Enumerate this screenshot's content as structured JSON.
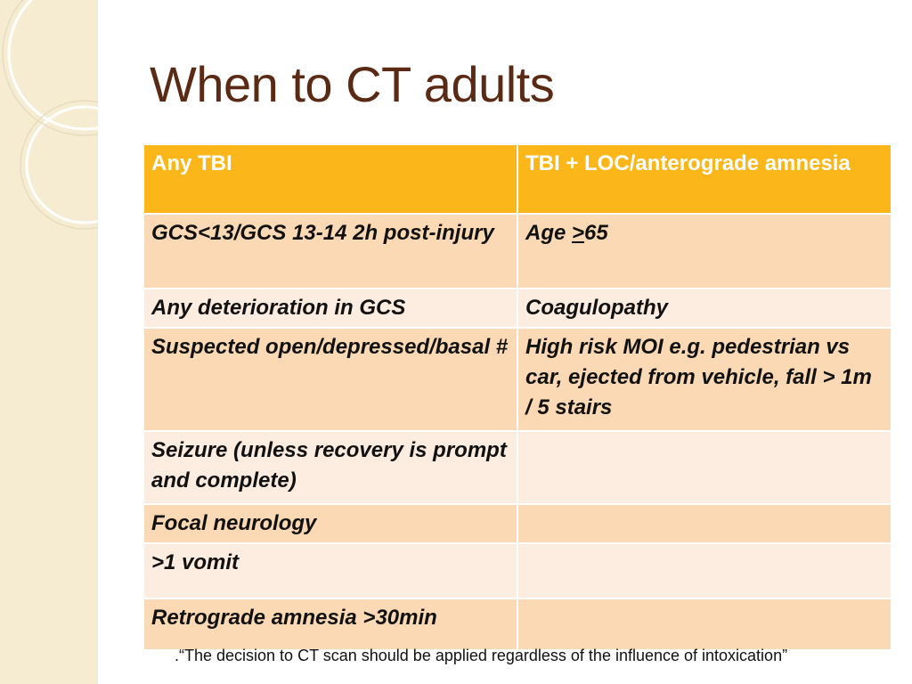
{
  "title": "When to CT adults",
  "headers": [
    "Any TBI",
    "TBI + LOC/anterograde amnesia"
  ],
  "rows": [
    {
      "left": "GCS<13/GCS 13-14 2h post-injury",
      "right_prefix": "Age ",
      "right_under": ">",
      "right_suffix": "65"
    },
    {
      "left": "Any deterioration in GCS",
      "right": "Coagulopathy"
    },
    {
      "left": "Suspected open/depressed/basal #",
      "right": "High risk MOI e.g. pedestrian vs car, ejected from vehicle, fall > 1m / 5 stairs"
    },
    {
      "left": "Seizure (unless recovery is prompt and complete)",
      "right": ""
    },
    {
      "left": "Focal neurology",
      "right": ""
    },
    {
      "left": ">1 vomit",
      "right": ""
    },
    {
      "left": "Retrograde amnesia >30min",
      "right": ""
    }
  ],
  "footnote": ".“The decision to CT scan should be applied regardless of the influence of intoxication”",
  "colors": {
    "title": "#5b2a14",
    "header_bg": "#fbb71a",
    "row_odd": "#fbd9b5",
    "row_even": "#fdece0",
    "side_band": "#f6ecd2"
  }
}
